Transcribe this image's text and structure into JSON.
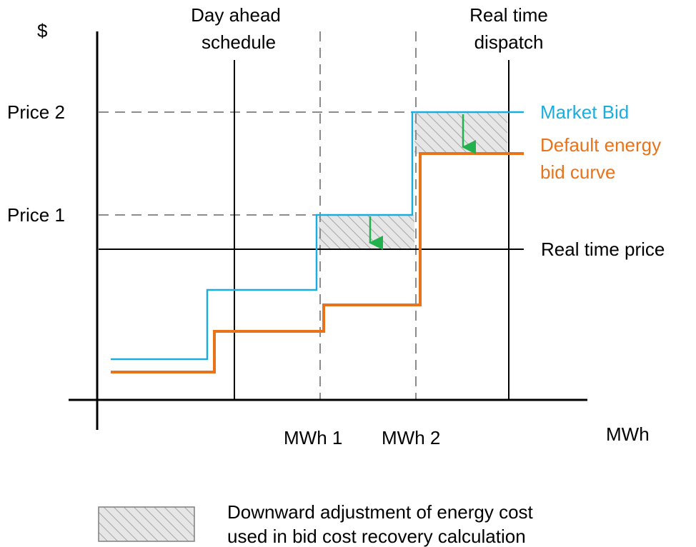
{
  "axes": {
    "y_unit": "$",
    "x_unit": "MWh"
  },
  "y_labels": {
    "price2": "Price 2",
    "price1": "Price 1"
  },
  "x_labels": {
    "mwh1": "MWh 1",
    "mwh2": "MWh 2"
  },
  "top_labels": {
    "day_ahead_line1": "Day ahead",
    "day_ahead_line2": "schedule",
    "real_time_line1": "Real time",
    "real_time_line2": "dispatch"
  },
  "curves": {
    "market_bid": "Market Bid",
    "default_line1": "Default energy",
    "default_line2": "bid curve",
    "real_time_price": "Real time price"
  },
  "legend": {
    "line1": "Downward adjustment of energy cost",
    "line2": "used in bid cost recovery calculation"
  },
  "colors": {
    "market_bid": "#1aaee0",
    "default_curve": "#e8731a",
    "arrow": "#22b14c",
    "hatch": "#a6a6a6",
    "dashed": "#8c8c8c",
    "axis": "#000000"
  }
}
